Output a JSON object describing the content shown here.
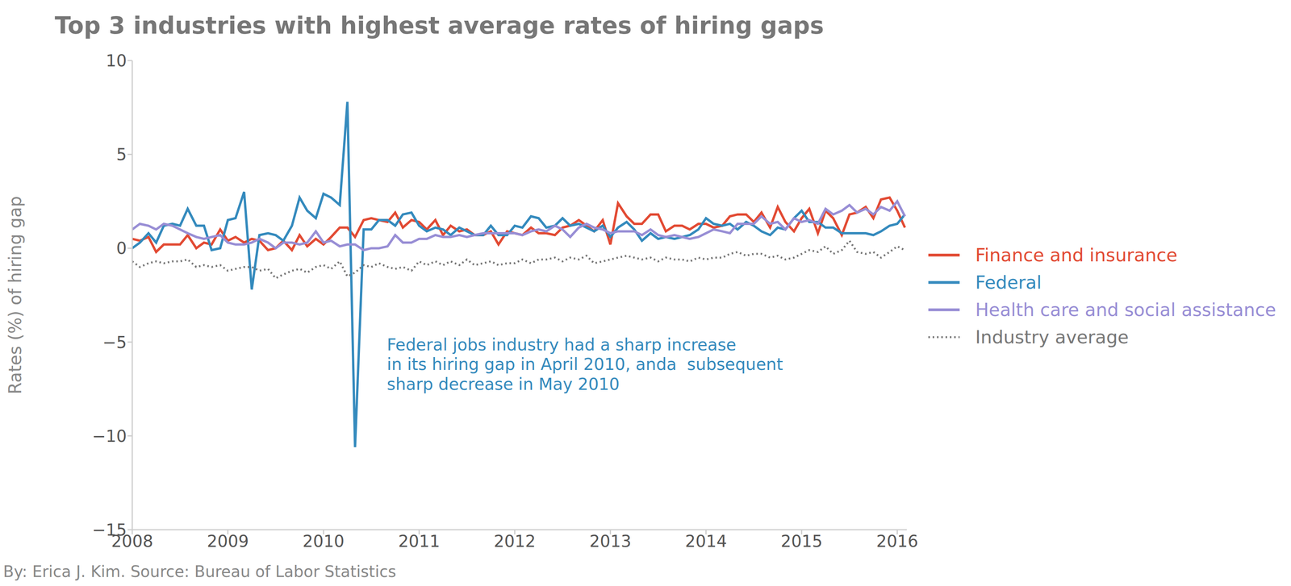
{
  "chart_data": {
    "type": "line",
    "title": "Top 3 industries with highest average rates of hiring gaps",
    "y_label": "Rates (%) of hiring gap",
    "annotation": "Federal jobs industry had a sharp increase\nin its hiring gap in April 2010, anda  subsequent\nsharp decrease in May 2010",
    "caption": "By: Erica J. Kim. Source: Bureau of Labor Statistics",
    "grid": false,
    "legend": "right",
    "xlim": [
      2008,
      2016.1
    ],
    "xticks": [
      2008,
      2009,
      2010,
      2011,
      2012,
      2013,
      2014,
      2015,
      2016
    ],
    "ylim": [
      -15,
      10
    ],
    "yticks": [
      {
        "value": -15,
        "label": "−15"
      },
      {
        "value": -10,
        "label": "−10"
      },
      {
        "value": -5,
        "label": "−5"
      },
      0,
      5,
      10
    ],
    "x": [
      2008,
      2008.08,
      2008.17,
      2008.25,
      2008.33,
      2008.42,
      2008.5,
      2008.58,
      2008.67,
      2008.75,
      2008.83,
      2008.92,
      2009,
      2009.08,
      2009.17,
      2009.25,
      2009.33,
      2009.42,
      2009.5,
      2009.58,
      2009.67,
      2009.75,
      2009.83,
      2009.92,
      2010,
      2010.08,
      2010.17,
      2010.25,
      2010.33,
      2010.42,
      2010.5,
      2010.58,
      2010.67,
      2010.75,
      2010.83,
      2010.92,
      2011,
      2011.08,
      2011.17,
      2011.25,
      2011.33,
      2011.42,
      2011.5,
      2011.58,
      2011.67,
      2011.75,
      2011.83,
      2011.92,
      2012,
      2012.08,
      2012.17,
      2012.25,
      2012.33,
      2012.42,
      2012.5,
      2012.58,
      2012.67,
      2012.75,
      2012.83,
      2012.92,
      2013,
      2013.08,
      2013.17,
      2013.25,
      2013.33,
      2013.42,
      2013.5,
      2013.58,
      2013.67,
      2013.75,
      2013.83,
      2013.92,
      2014,
      2014.08,
      2014.17,
      2014.25,
      2014.33,
      2014.42,
      2014.5,
      2014.58,
      2014.67,
      2014.75,
      2014.83,
      2014.92,
      2015,
      2015.08,
      2015.17,
      2015.25,
      2015.33,
      2015.42,
      2015.5,
      2015.58,
      2015.67,
      2015.75,
      2015.83,
      2015.92,
      2016,
      2016.08
    ],
    "series": [
      {
        "name": "Finance and insurance",
        "color": "#e24a33",
        "line_style": "solid",
        "values": [
          0.5,
          0.4,
          0.6,
          -0.2,
          0.2,
          0.2,
          0.2,
          0.7,
          0,
          0.3,
          0.2,
          1.0,
          0.4,
          0.6,
          0.3,
          0.5,
          0.4,
          -0.1,
          0,
          0.4,
          -0.1,
          0.7,
          0.1,
          0.5,
          0.2,
          0.6,
          1.1,
          1.1,
          0.6,
          1.5,
          1.6,
          1.5,
          1.4,
          1.9,
          1.1,
          1.5,
          1.4,
          1.0,
          1.5,
          0.7,
          1.2,
          0.9,
          1.0,
          0.7,
          0.7,
          0.9,
          0.2,
          0.9,
          0.8,
          0.7,
          1.1,
          0.8,
          0.8,
          0.7,
          1.1,
          1.2,
          1.5,
          1.2,
          0.9,
          1.5,
          0.2,
          2.4,
          1.7,
          1.3,
          1.3,
          1.8,
          1.8,
          0.9,
          1.2,
          1.2,
          1.0,
          1.3,
          1.3,
          1.1,
          1.2,
          1.7,
          1.8,
          1.8,
          1.4,
          1.9,
          1.1,
          2.2,
          1.4,
          0.9,
          1.6,
          2.1,
          0.8,
          2.0,
          1.6,
          0.7,
          1.8,
          1.9,
          2.2,
          1.6,
          2.6,
          2.7,
          2.0,
          1.1
        ]
      },
      {
        "name": "Federal",
        "color": "#348abd",
        "line_style": "solid",
        "values": [
          0,
          0.3,
          0.8,
          0.3,
          1.2,
          1.3,
          1.2,
          2.1,
          1.2,
          1.2,
          -0.1,
          0,
          1.5,
          1.6,
          3.0,
          -2.2,
          0.7,
          0.8,
          0.7,
          0.4,
          1.2,
          2.7,
          2.0,
          1.6,
          2.9,
          2.7,
          2.3,
          7.8,
          -10.6,
          1.0,
          1.0,
          1.5,
          1.5,
          1.2,
          1.8,
          1.9,
          1.2,
          0.9,
          1.1,
          1.0,
          0.7,
          1.1,
          0.9,
          0.7,
          0.7,
          1.2,
          0.7,
          0.7,
          1.2,
          1.1,
          1.7,
          1.6,
          1.1,
          1.2,
          1.6,
          1.2,
          1.3,
          1.1,
          0.9,
          1.2,
          0.6,
          1.1,
          1.4,
          1.0,
          0.4,
          0.8,
          0.5,
          0.6,
          0.5,
          0.6,
          0.7,
          1.0,
          1.6,
          1.3,
          1.2,
          1.3,
          1.0,
          1.4,
          1.2,
          0.9,
          0.7,
          1.1,
          1.0,
          1.6,
          2.0,
          1.4,
          1.4,
          1.1,
          1.1,
          0.8,
          0.8,
          0.8,
          0.8,
          0.7,
          0.9,
          1.2,
          1.3,
          1.8
        ]
      },
      {
        "name": "Health care and social assistance",
        "color": "#988ed5",
        "line_style": "solid",
        "values": [
          1.0,
          1.3,
          1.2,
          1.0,
          1.3,
          1.2,
          1.0,
          0.8,
          0.6,
          0.5,
          0.6,
          0.7,
          0.3,
          0.2,
          0.2,
          0.3,
          0.5,
          0.3,
          0,
          0.3,
          0.3,
          0.2,
          0.3,
          0.9,
          0.3,
          0.4,
          0.1,
          0.2,
          0.2,
          -0.1,
          0,
          0,
          0.1,
          0.7,
          0.3,
          0.3,
          0.5,
          0.5,
          0.7,
          0.6,
          0.6,
          0.7,
          0.6,
          0.7,
          0.8,
          0.8,
          0.8,
          0.8,
          0.8,
          0.7,
          0.9,
          1.0,
          0.9,
          1.2,
          1.0,
          0.6,
          1.1,
          1.3,
          1.1,
          1.0,
          0.8,
          0.9,
          0.9,
          0.9,
          0.7,
          1.0,
          0.7,
          0.6,
          0.7,
          0.6,
          0.5,
          0.6,
          0.8,
          1.0,
          0.9,
          0.8,
          1.3,
          1.3,
          1.3,
          1.7,
          1.3,
          1.4,
          1.0,
          1.6,
          1.4,
          1.5,
          1.3,
          2.1,
          1.8,
          2.0,
          2.3,
          1.9,
          2.1,
          1.8,
          2.2,
          2.0,
          2.5,
          1.7
        ]
      },
      {
        "name": "Industry average",
        "color": "#777777",
        "line_style": "dotted",
        "values": [
          -0.7,
          -1.0,
          -0.8,
          -0.7,
          -0.8,
          -0.7,
          -0.7,
          -0.6,
          -1.0,
          -0.9,
          -1.0,
          -0.9,
          -1.2,
          -1.1,
          -1.0,
          -1.0,
          -1.2,
          -1.1,
          -1.6,
          -1.4,
          -1.2,
          -1.1,
          -1.3,
          -1.0,
          -0.9,
          -1.1,
          -0.7,
          -1.5,
          -1.3,
          -0.9,
          -1.0,
          -0.8,
          -1.0,
          -1.1,
          -1.0,
          -1.2,
          -0.7,
          -0.9,
          -0.7,
          -0.9,
          -0.7,
          -0.9,
          -0.6,
          -0.9,
          -0.8,
          -0.7,
          -0.9,
          -0.8,
          -0.8,
          -0.6,
          -0.8,
          -0.6,
          -0.6,
          -0.5,
          -0.7,
          -0.5,
          -0.6,
          -0.4,
          -0.8,
          -0.7,
          -0.6,
          -0.5,
          -0.4,
          -0.5,
          -0.6,
          -0.5,
          -0.7,
          -0.5,
          -0.6,
          -0.6,
          -0.7,
          -0.5,
          -0.6,
          -0.5,
          -0.5,
          -0.3,
          -0.2,
          -0.4,
          -0.3,
          -0.3,
          -0.5,
          -0.4,
          -0.6,
          -0.5,
          -0.3,
          -0.1,
          -0.2,
          0.1,
          -0.3,
          -0.1,
          0.4,
          -0.2,
          -0.3,
          -0.2,
          -0.5,
          -0.2,
          0.1,
          -0.1
        ]
      }
    ]
  }
}
